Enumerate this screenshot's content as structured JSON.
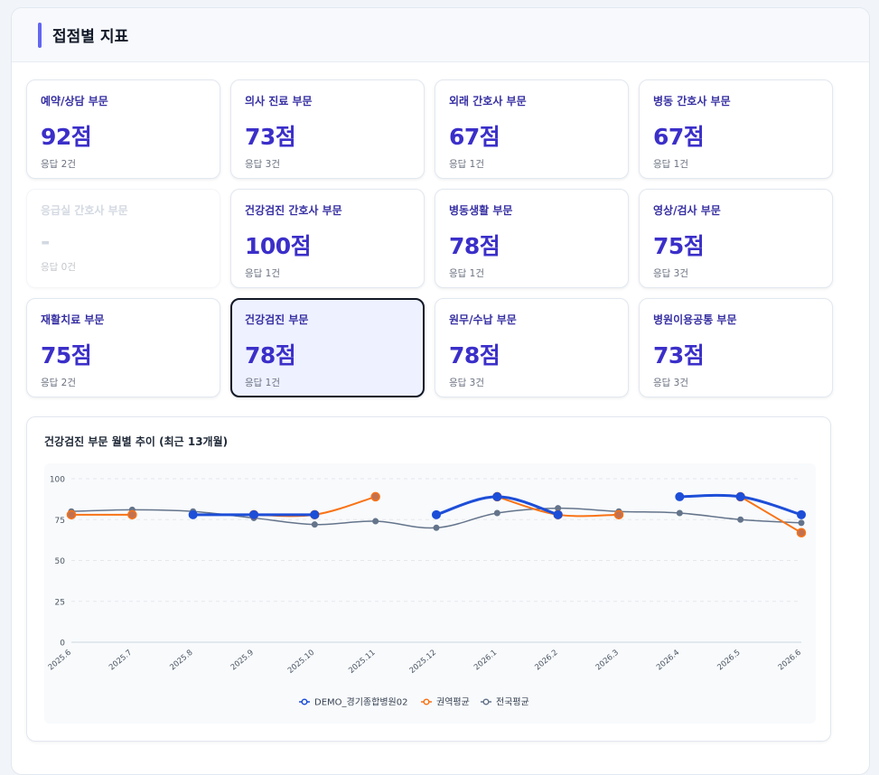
{
  "header": {
    "title": "접점별 지표"
  },
  "cards": [
    {
      "title": "예약/상담 부문",
      "score": "92점",
      "count": "응답 2건",
      "state": "normal"
    },
    {
      "title": "의사 진료 부문",
      "score": "73점",
      "count": "응답 3건",
      "state": "normal"
    },
    {
      "title": "외래 간호사 부문",
      "score": "67점",
      "count": "응답 1건",
      "state": "normal"
    },
    {
      "title": "병동 간호사 부문",
      "score": "67점",
      "count": "응답 1건",
      "state": "normal"
    },
    {
      "title": "응급실 간호사 부문",
      "score": "-",
      "count": "응답 0건",
      "state": "disabled"
    },
    {
      "title": "건강검진 간호사 부문",
      "score": "100점",
      "count": "응답 1건",
      "state": "normal"
    },
    {
      "title": "병동생활 부문",
      "score": "78점",
      "count": "응답 1건",
      "state": "normal"
    },
    {
      "title": "영상/검사 부문",
      "score": "75점",
      "count": "응답 3건",
      "state": "normal"
    },
    {
      "title": "재활치료 부문",
      "score": "75점",
      "count": "응답 2건",
      "state": "normal"
    },
    {
      "title": "건강검진 부문",
      "score": "78점",
      "count": "응답 1건",
      "state": "selected"
    },
    {
      "title": "원무/수납 부문",
      "score": "78점",
      "count": "응답 3건",
      "state": "normal"
    },
    {
      "title": "병원이용공통 부문",
      "score": "73점",
      "count": "응답 3건",
      "state": "normal"
    }
  ],
  "chart": {
    "title": "건강검진 부문 월별 추이 (최근 13개월)"
  },
  "chart_data": {
    "type": "line",
    "title": "건강검진 부문 월별 추이 (최근 13개월)",
    "x": [
      "2025.6",
      "2025.7",
      "2025.8",
      "2025.9",
      "2025.10",
      "2025.11",
      "2025.12",
      "2026.1",
      "2026.2",
      "2026.3",
      "2026.4",
      "2026.5",
      "2026.6"
    ],
    "ylim": [
      0,
      100
    ],
    "yticks": [
      0,
      25,
      50,
      75,
      100
    ],
    "grid": true,
    "legend_position": "bottom",
    "series": [
      {
        "name": "DEMO_경기종합병원02",
        "color": "#1d4ed8",
        "values": [
          null,
          null,
          78,
          78,
          78,
          null,
          78,
          89,
          78,
          null,
          89,
          89,
          78
        ]
      },
      {
        "name": "권역평균",
        "color": "#f97316",
        "values": [
          78,
          78,
          null,
          78,
          78,
          89,
          null,
          89,
          78,
          78,
          null,
          89,
          67
        ]
      },
      {
        "name": "전국평균",
        "color": "#64748b",
        "values": [
          80,
          81,
          80,
          76,
          72,
          74,
          70,
          79,
          82,
          80,
          79,
          75,
          73
        ]
      }
    ]
  }
}
